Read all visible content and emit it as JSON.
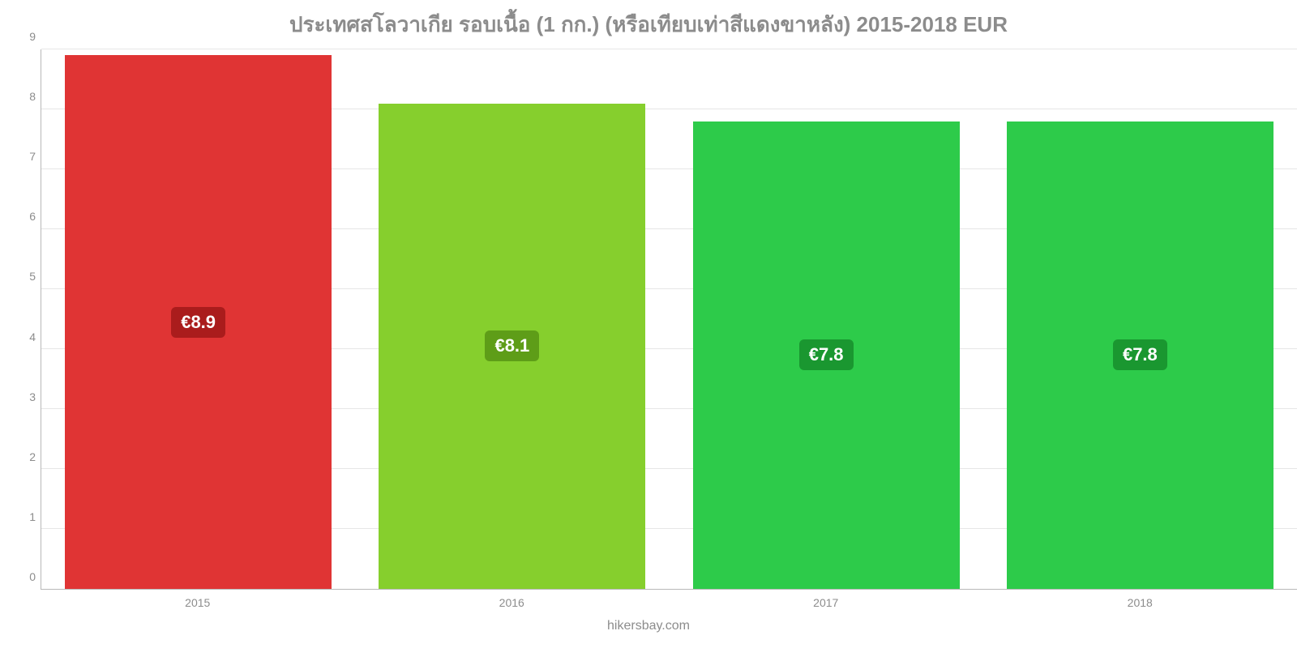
{
  "chart": {
    "type": "bar",
    "title": "ประเทศสโลวาเกีย รอบเนื้อ (1 กก.) (หรือเทียบเท่าสีแดงขาหลัง) 2015-2018 EUR",
    "title_color": "#8c8c8c",
    "title_fontsize": 26,
    "footer": "hikersbay.com",
    "footer_color": "#8c8c8c",
    "footer_fontsize": 16,
    "background_color": "#ffffff",
    "axis_line_color": "#b8b8b8",
    "grid_line_color": "#e6e6e6",
    "tick_label_color": "#8c8c8c",
    "tick_fontsize": 14,
    "y_axis": {
      "min": 0,
      "max": 9,
      "step": 1,
      "ticks": [
        "0",
        "1",
        "2",
        "3",
        "4",
        "5",
        "6",
        "7",
        "8",
        "9"
      ]
    },
    "x_categories": [
      "2015",
      "2016",
      "2017",
      "2018"
    ],
    "bar_width_pct": 85,
    "bars": [
      {
        "value": 8.9,
        "label": "€8.9",
        "fill": "#e03434",
        "label_bg": "#aa1c1c"
      },
      {
        "value": 8.1,
        "label": "€8.1",
        "fill": "#86cf2d",
        "label_bg": "#5e9d18"
      },
      {
        "value": 7.8,
        "label": "€7.8",
        "fill": "#2dcb4a",
        "label_bg": "#1a9730"
      },
      {
        "value": 7.8,
        "label": "€7.8",
        "fill": "#2dcb4a",
        "label_bg": "#1a9730"
      }
    ],
    "bar_label_fontsize": 22,
    "bar_label_color": "#ffffff"
  }
}
